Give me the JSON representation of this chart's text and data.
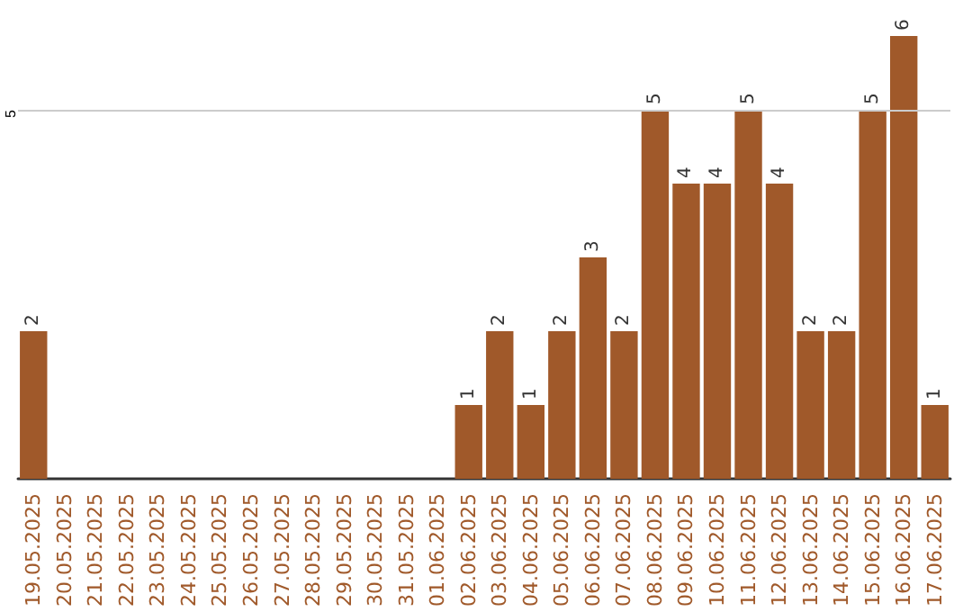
{
  "chart_data": {
    "type": "bar",
    "categories": [
      "19.05.2025",
      "20.05.2025",
      "21.05.2025",
      "22.05.2025",
      "23.05.2025",
      "24.05.2025",
      "25.05.2025",
      "26.05.2025",
      "27.05.2025",
      "28.05.2025",
      "29.05.2025",
      "30.05.2025",
      "31.05.2025",
      "01.06.2025",
      "02.06.2025",
      "03.06.2025",
      "04.06.2025",
      "05.06.2025",
      "06.06.2025",
      "07.06.2025",
      "08.06.2025",
      "09.06.2025",
      "10.06.2025",
      "11.06.2025",
      "12.06.2025",
      "13.06.2025",
      "14.06.2025",
      "15.06.2025",
      "16.06.2025",
      "17.06.2025"
    ],
    "values": [
      2,
      0,
      0,
      0,
      0,
      0,
      0,
      0,
      0,
      0,
      0,
      0,
      0,
      0,
      1,
      2,
      1,
      2,
      3,
      2,
      5,
      4,
      4,
      5,
      4,
      2,
      2,
      5,
      6,
      1
    ],
    "value_labels": [
      "2",
      null,
      null,
      null,
      null,
      null,
      null,
      null,
      null,
      null,
      null,
      null,
      null,
      null,
      "1",
      "2",
      "1",
      "2",
      "3",
      "2",
      "5",
      "4",
      "4",
      "5",
      "4",
      "2",
      "2",
      "5",
      "6",
      "1"
    ],
    "color": "#a0592a",
    "ref_lines": [
      {
        "axis": "y",
        "value": 5,
        "label": "5",
        "color": "#cccccc"
      }
    ]
  }
}
